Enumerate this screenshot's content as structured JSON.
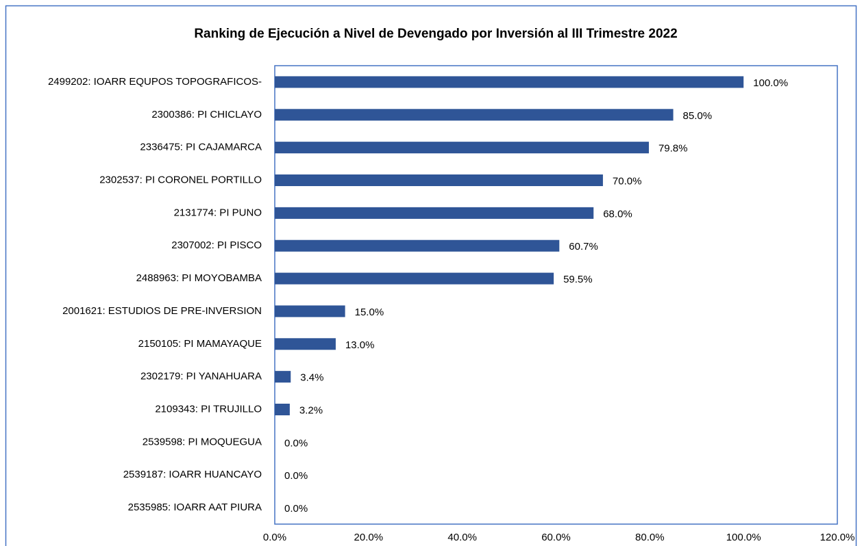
{
  "chart_data": {
    "type": "bar",
    "orientation": "horizontal",
    "title": "Ranking de Ejecución a Nivel de Devengado por Inversión al III Trimestre 2022",
    "categories": [
      "2499202: IOARR EQUPOS TOPOGRAFICOS-",
      "2300386: PI CHICLAYO",
      "2336475: PI CAJAMARCA",
      "2302537: PI CORONEL PORTILLO",
      "2131774: PI PUNO",
      "2307002: PI PISCO",
      "2488963: PI MOYOBAMBA",
      "2001621: ESTUDIOS DE PRE-INVERSION",
      "2150105: PI MAMAYAQUE",
      "2302179: PI YANAHUARA",
      "2109343: PI TRUJILLO",
      "2539598: PI MOQUEGUA",
      "2539187: IOARR HUANCAYO",
      "2535985: IOARR AAT PIURA"
    ],
    "values": [
      100.0,
      85.0,
      79.8,
      70.0,
      68.0,
      60.7,
      59.5,
      15.0,
      13.0,
      3.4,
      3.2,
      0.0,
      0.0,
      0.0
    ],
    "value_labels": [
      "100.0%",
      "85.0%",
      "79.8%",
      "70.0%",
      "68.0%",
      "60.7%",
      "59.5%",
      "15.0%",
      "13.0%",
      "3.4%",
      "3.2%",
      "0.0%",
      "0.0%",
      "0.0%"
    ],
    "color": "#2f5597",
    "xlim": [
      0,
      120
    ],
    "xticks": [
      {
        "value": 0,
        "label": "0.0%"
      },
      {
        "value": 20,
        "label": "20.0%"
      },
      {
        "value": 40,
        "label": "40.0%"
      },
      {
        "value": 60,
        "label": "60.0%"
      },
      {
        "value": 80,
        "label": "80.0%"
      },
      {
        "value": 100,
        "label": "100.0%"
      },
      {
        "value": 120,
        "label": "120.0%"
      }
    ],
    "grid": false
  }
}
